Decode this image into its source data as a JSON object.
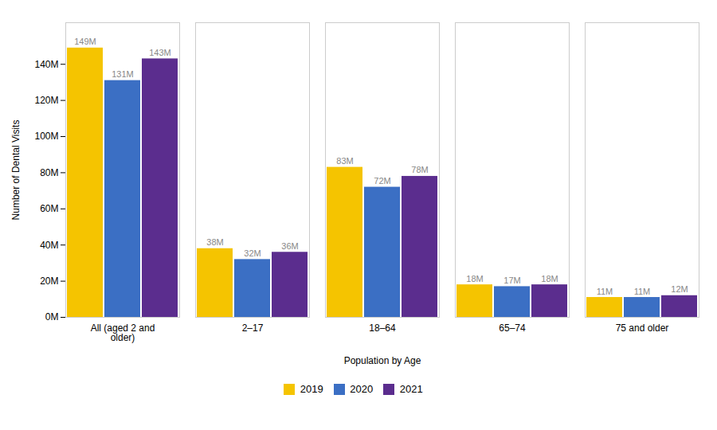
{
  "chart_data": {
    "type": "bar",
    "categories": [
      "All (aged 2 and\nolder)",
      "2–17",
      "18–64",
      "65–74",
      "75 and older"
    ],
    "series": [
      {
        "name": "2019",
        "color": "#F5C400",
        "values": [
          149,
          38,
          83,
          18,
          11
        ],
        "value_labels": [
          "149M",
          "38M",
          "83M",
          "18M",
          "11M"
        ]
      },
      {
        "name": "2020",
        "color": "#3B6FC4",
        "values": [
          131,
          32,
          72,
          17,
          11
        ],
        "value_labels": [
          "131M",
          "32M",
          "72M",
          "17M",
          "11M"
        ]
      },
      {
        "name": "2021",
        "color": "#5B2D8E",
        "values": [
          143,
          36,
          78,
          18,
          12
        ],
        "value_labels": [
          "143M",
          "36M",
          "78M",
          "18M",
          "12M"
        ]
      }
    ],
    "xlabel": "Population by Age",
    "ylabel": "Number of Dental Visits",
    "ylim": [
      0,
      163
    ],
    "yticks": [
      {
        "value": 0,
        "label": "0M"
      },
      {
        "value": 20,
        "label": "20M"
      },
      {
        "value": 40,
        "label": "40M"
      },
      {
        "value": 60,
        "label": "60M"
      },
      {
        "value": 80,
        "label": "80M"
      },
      {
        "value": 100,
        "label": "100M"
      },
      {
        "value": 120,
        "label": "120M"
      },
      {
        "value": 140,
        "label": "140M"
      }
    ],
    "grid": false,
    "data_labels": true,
    "legend": "bottom"
  }
}
